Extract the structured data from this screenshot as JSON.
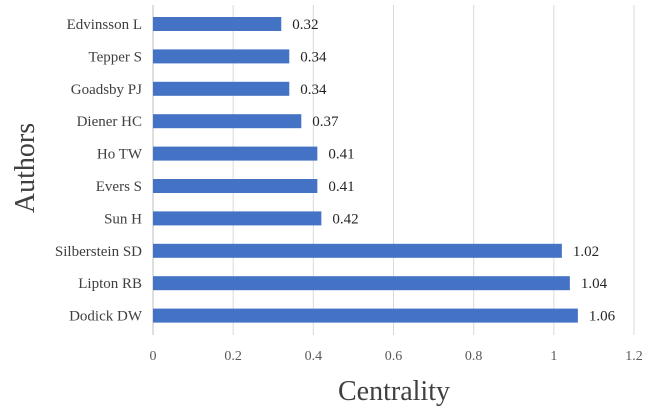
{
  "chart_data": {
    "type": "bar",
    "orientation": "horizontal",
    "categories": [
      "Edvinsson L",
      "Tepper S",
      "Goadsby PJ",
      "Diener HC",
      "Ho TW",
      "Evers S",
      "Sun H",
      "Silberstein SD",
      "Lipton RB",
      "Dodick DW"
    ],
    "values": [
      0.32,
      0.34,
      0.34,
      0.37,
      0.41,
      0.41,
      0.42,
      1.02,
      1.04,
      1.06
    ],
    "value_labels": [
      "0.32",
      "0.34",
      "0.34",
      "0.37",
      "0.41",
      "0.41",
      "0.42",
      "1.02",
      "1.04",
      "1.06"
    ],
    "x_ticks": [
      "0",
      "0.2",
      "0.4",
      "0.6",
      "0.8",
      "1",
      "1.2"
    ],
    "xlim": [
      0,
      1.2
    ],
    "xlabel": "Centrality",
    "ylabel": "Authors",
    "grid": "vertical",
    "bar_color": "#4472c4"
  }
}
